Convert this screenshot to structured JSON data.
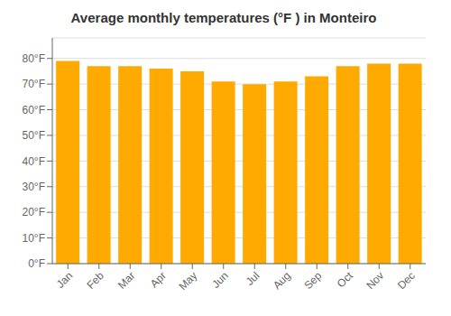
{
  "chart_data": {
    "type": "bar",
    "title": "Average monthly temperatures (°F ) in Monteiro",
    "categories": [
      "Jan",
      "Feb",
      "Mar",
      "Apr",
      "May",
      "Jun",
      "Jul",
      "Aug",
      "Sep",
      "Oct",
      "Nov",
      "Dec"
    ],
    "values": [
      79,
      77,
      77,
      76,
      75,
      71,
      70,
      71,
      73,
      77,
      78,
      78
    ],
    "color": "#FFAA00",
    "ylim": [
      0,
      88
    ],
    "yticks": [
      {
        "value": 0,
        "label": "0°F"
      },
      {
        "value": 10,
        "label": "10°F"
      },
      {
        "value": 20,
        "label": "20°F"
      },
      {
        "value": 30,
        "label": "30°F"
      },
      {
        "value": 40,
        "label": "40°F"
      },
      {
        "value": 50,
        "label": "50°F"
      },
      {
        "value": 60,
        "label": "60°F"
      },
      {
        "value": 70,
        "label": "70°F"
      },
      {
        "value": 80,
        "label": "80°F"
      }
    ],
    "grid": true
  }
}
